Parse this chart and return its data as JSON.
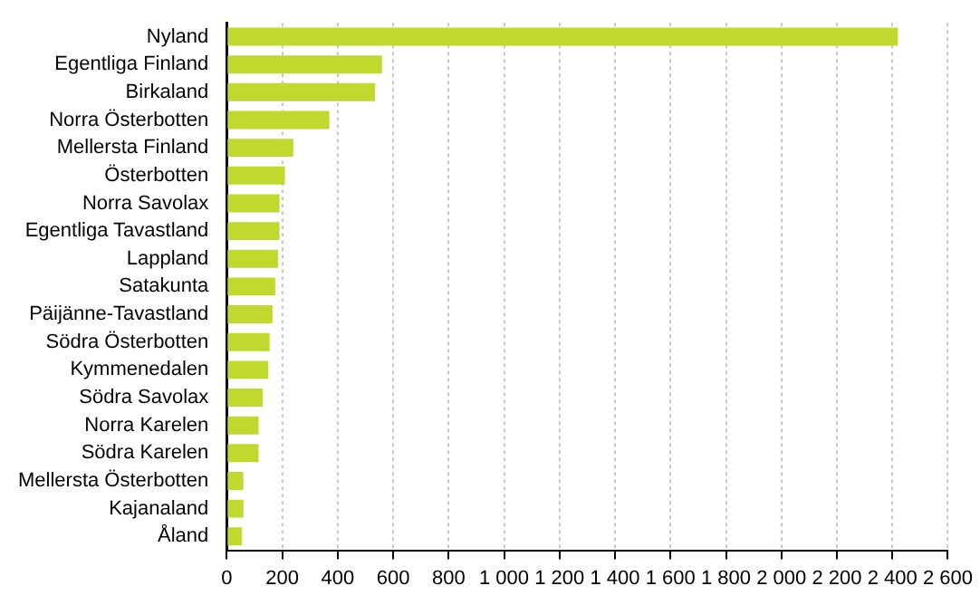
{
  "chart_data": {
    "type": "bar",
    "orientation": "horizontal",
    "categories": [
      "Nyland",
      "Egentliga Finland",
      "Birkaland",
      "Norra Österbotten",
      "Mellersta Finland",
      "Österbotten",
      "Norra Savolax",
      "Egentliga Tavastland",
      "Lappland",
      "Satakunta",
      "Päijänne-Tavastland",
      "Södra Österbotten",
      "Kymmenedalen",
      "Södra Savolax",
      "Norra Karelen",
      "Södra Karelen",
      "Mellersta Österbotten",
      "Kajanaland",
      "Åland"
    ],
    "values": [
      2420,
      560,
      535,
      370,
      240,
      210,
      190,
      190,
      185,
      175,
      165,
      155,
      150,
      130,
      115,
      115,
      60,
      60,
      55
    ],
    "color": "#c1d82f",
    "xlim": [
      0,
      2600
    ],
    "xticks": [
      0,
      200,
      400,
      600,
      800,
      {
        "value": 1000,
        "label": "1 000"
      },
      {
        "value": 1200,
        "label": "1 200"
      },
      {
        "value": 1400,
        "label": "1 400"
      },
      {
        "value": 1600,
        "label": "1 600"
      },
      {
        "value": 1800,
        "label": "1 800"
      },
      {
        "value": 2000,
        "label": "2 000"
      },
      {
        "value": 2200,
        "label": "2 200"
      },
      {
        "value": 2400,
        "label": "2 400"
      },
      {
        "value": 2600,
        "label": "2 600"
      }
    ],
    "grid": "x",
    "legend": false
  }
}
